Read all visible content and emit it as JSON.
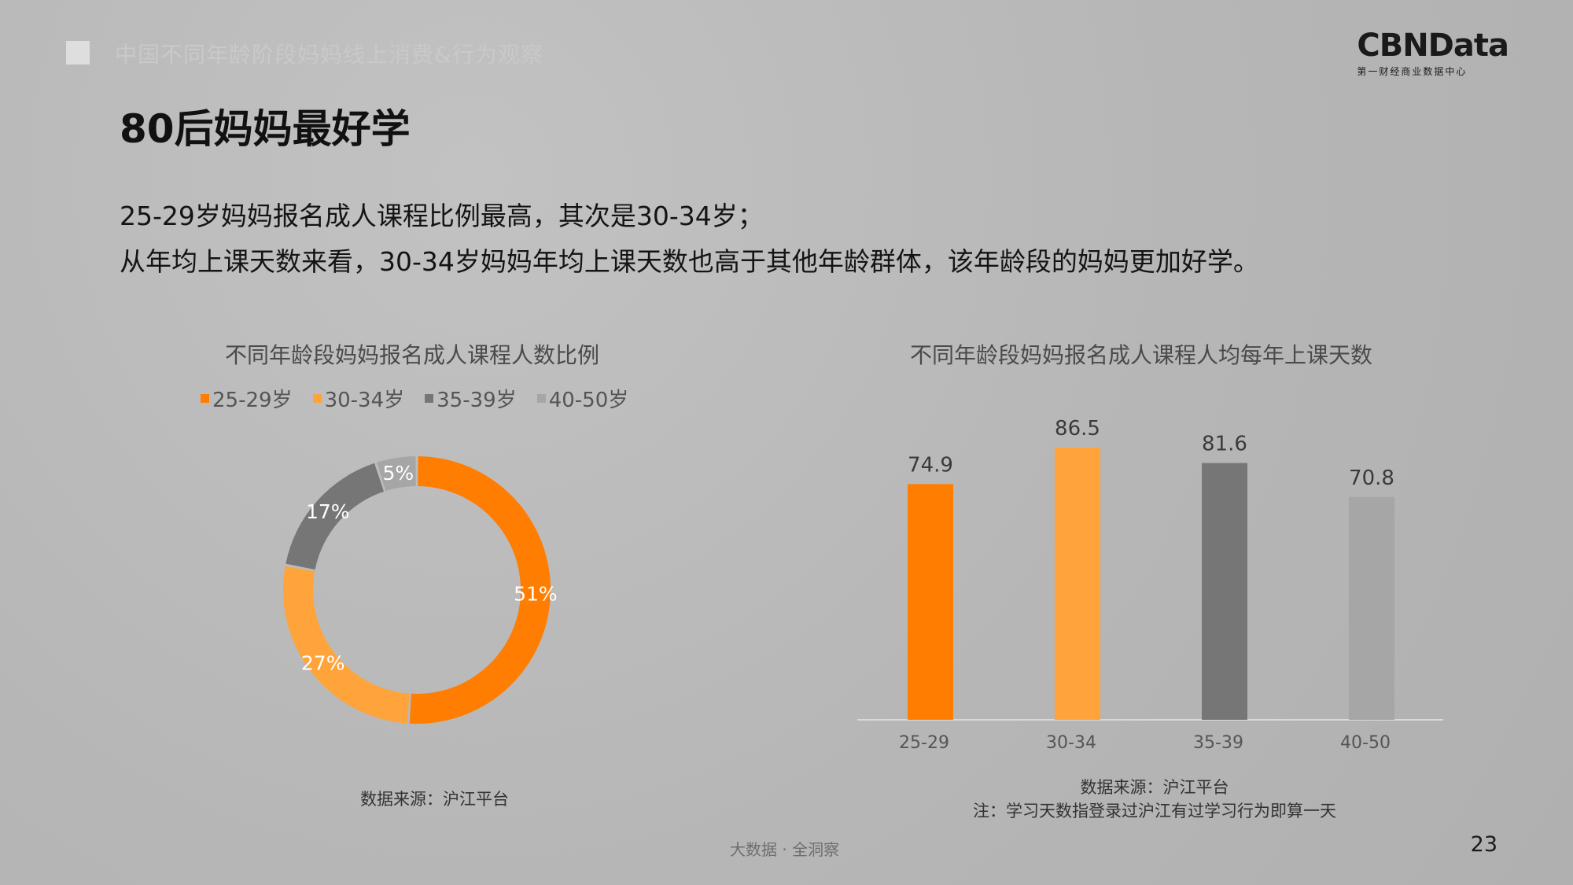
{
  "header": {
    "subtitle": "中国不同年龄阶段妈妈线上消费&行为观察",
    "logo_main": "CBNData",
    "logo_sub": "第一财经商业数据中心"
  },
  "title": "80后妈妈最好学",
  "description": [
    "25-29岁妈妈报名成人课程比例最高，其次是30-34岁；",
    "从年均上课天数来看，30-34岁妈妈年均上课天数也高于其他年龄群体，该年龄段的妈妈更加好学。"
  ],
  "colors": {
    "c1": "#ff7d00",
    "c2": "#ffa43a",
    "c3": "#767676",
    "c4": "#a6a6a6"
  },
  "chart_data": [
    {
      "type": "pie",
      "title": "不同年龄段妈妈报名成人课程人数比例",
      "categories": [
        "25-29岁",
        "30-34岁",
        "35-39岁",
        "40-50岁"
      ],
      "values": [
        51,
        27,
        17,
        5
      ],
      "labels": [
        "51%",
        "27%",
        "17%",
        "5%"
      ],
      "legend": "top"
    },
    {
      "type": "bar",
      "title": "不同年龄段妈妈报名成人课程人均每年上课天数",
      "categories": [
        "25-29",
        "30-34",
        "35-39",
        "40-50"
      ],
      "values": [
        74.9,
        86.5,
        81.6,
        70.8
      ],
      "labels": [
        "74.9",
        "86.5",
        "81.6",
        "70.8"
      ],
      "ylim": [
        0,
        95
      ],
      "grid": false
    }
  ],
  "sources": {
    "left": "数据来源：沪江平台",
    "right_line1": "数据来源：沪江平台",
    "right_line2": "注：学习天数指登录过沪江有过学习行为即算一天"
  },
  "footer": "大数据 · 全洞察",
  "page_number": "23"
}
